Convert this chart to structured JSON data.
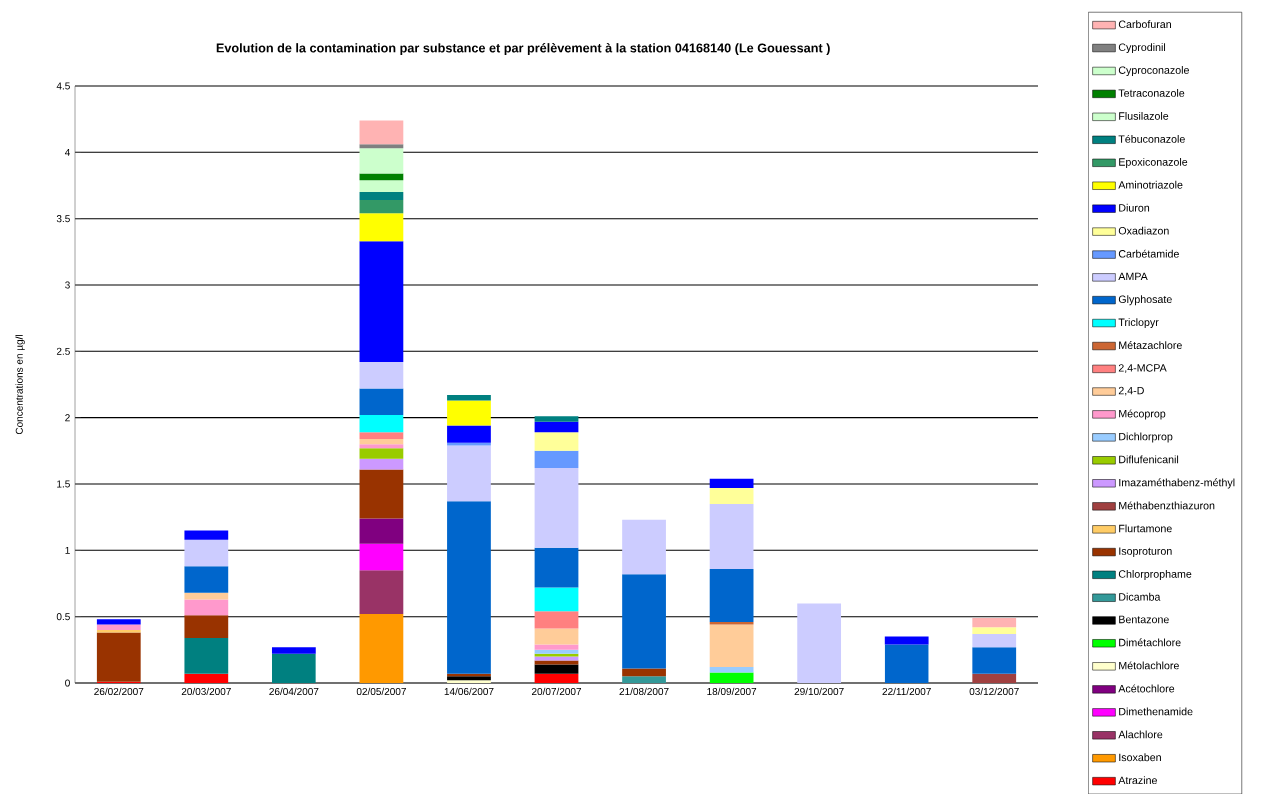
{
  "chart_data": {
    "type": "bar",
    "stacked": true,
    "title": "Evolution de la contamination par substance et par prélèvement à la station 04168140 (Le Gouessant )",
    "ylabel": "Concentrations en µg/l",
    "categories": [
      "26/02/2007",
      "20/03/2007",
      "26/04/2007",
      "02/05/2007",
      "14/06/2007",
      "20/07/2007",
      "21/08/2007",
      "18/09/2007",
      "29/10/2007",
      "22/11/2007",
      "03/12/2007"
    ],
    "ylim": [
      0,
      4.5
    ],
    "yticks": [
      0,
      0.5,
      1,
      1.5,
      2,
      2.5,
      3,
      3.5,
      4,
      4.5
    ],
    "grid": "y",
    "legend": "right",
    "series": [
      {
        "name": "Atrazine",
        "color": "#ff0000",
        "values": [
          0.01,
          0.07,
          null,
          null,
          null,
          0.07,
          null,
          null,
          null,
          null,
          null
        ]
      },
      {
        "name": "Isoxaben",
        "color": "#ff9900",
        "values": [
          null,
          null,
          null,
          0.52,
          null,
          null,
          null,
          null,
          null,
          null,
          null
        ]
      },
      {
        "name": "Alachlore",
        "color": "#993366",
        "values": [
          null,
          null,
          null,
          0.33,
          null,
          null,
          null,
          null,
          null,
          null,
          null
        ]
      },
      {
        "name": "Dimethenamide",
        "color": "#ff00ff",
        "values": [
          null,
          null,
          null,
          0.2,
          null,
          null,
          null,
          null,
          null,
          null,
          null
        ]
      },
      {
        "name": "Acétochlore",
        "color": "#800080",
        "values": [
          null,
          null,
          null,
          0.19,
          null,
          null,
          null,
          null,
          null,
          null,
          null
        ]
      },
      {
        "name": "Métolachlore",
        "color": "#ffffcc",
        "values": [
          null,
          null,
          null,
          null,
          0.02,
          null,
          null,
          null,
          null,
          null,
          null
        ]
      },
      {
        "name": "Dimétachlore",
        "color": "#00ff00",
        "values": [
          null,
          null,
          null,
          null,
          null,
          null,
          null,
          0.08,
          null,
          null,
          null
        ]
      },
      {
        "name": "Bentazone",
        "color": "#000000",
        "values": [
          null,
          null,
          null,
          null,
          0.03,
          0.07,
          null,
          null,
          null,
          null,
          null
        ]
      },
      {
        "name": "Dicamba",
        "color": "#339999",
        "values": [
          null,
          null,
          null,
          null,
          null,
          null,
          0.05,
          null,
          null,
          null,
          null
        ]
      },
      {
        "name": "Chlorprophame",
        "color": "#008080",
        "values": [
          null,
          0.27,
          0.22,
          null,
          null,
          null,
          null,
          null,
          null,
          null,
          null
        ]
      },
      {
        "name": "Isoproturon",
        "color": "#993300",
        "values": [
          0.37,
          0.17,
          null,
          0.37,
          0.02,
          0.03,
          0.06,
          null,
          null,
          null,
          null
        ]
      },
      {
        "name": "Flurtamone",
        "color": "#ffcc66",
        "values": [
          0.02,
          null,
          null,
          null,
          null,
          null,
          null,
          null,
          null,
          null,
          null
        ]
      },
      {
        "name": "Méthabenzthiazuron",
        "color": "#a04040",
        "values": [
          null,
          null,
          null,
          null,
          null,
          null,
          null,
          null,
          null,
          null,
          0.07
        ]
      },
      {
        "name": "Imazaméthabenz-méthyl",
        "color": "#cc99ff",
        "values": [
          null,
          null,
          null,
          0.08,
          null,
          0.03,
          null,
          null,
          null,
          null,
          null
        ]
      },
      {
        "name": "Diflufenicanil",
        "color": "#99cc00",
        "values": [
          null,
          null,
          null,
          0.08,
          null,
          0.02,
          null,
          null,
          null,
          null,
          null
        ]
      },
      {
        "name": "Dichlorprop",
        "color": "#99ccff",
        "values": [
          null,
          null,
          null,
          null,
          null,
          0.03,
          null,
          0.04,
          null,
          null,
          null
        ]
      },
      {
        "name": "Mécoprop",
        "color": "#ff99cc",
        "values": [
          0.04,
          0.12,
          null,
          0.03,
          null,
          0.04,
          null,
          null,
          null,
          null,
          null
        ]
      },
      {
        "name": "2,4-D",
        "color": "#ffcc99",
        "values": [
          null,
          0.05,
          null,
          0.04,
          null,
          0.12,
          null,
          0.32,
          null,
          null,
          null
        ]
      },
      {
        "name": "2,4-MCPA",
        "color": "#ff8080",
        "values": [
          null,
          null,
          null,
          0.05,
          null,
          0.13,
          null,
          null,
          null,
          null,
          null
        ]
      },
      {
        "name": "Métazachlore",
        "color": "#cc6633",
        "values": [
          null,
          null,
          null,
          null,
          null,
          null,
          null,
          0.02,
          null,
          null,
          null
        ]
      },
      {
        "name": "Triclopyr",
        "color": "#00ffff",
        "values": [
          null,
          null,
          null,
          0.13,
          null,
          0.18,
          null,
          null,
          null,
          null,
          null
        ]
      },
      {
        "name": "Glyphosate",
        "color": "#0066cc",
        "values": [
          null,
          0.2,
          null,
          0.2,
          1.3,
          0.3,
          0.71,
          0.4,
          null,
          0.29,
          0.2
        ]
      },
      {
        "name": "AMPA",
        "color": "#ccccff",
        "values": [
          null,
          0.2,
          null,
          0.2,
          0.42,
          0.6,
          0.41,
          0.49,
          0.6,
          null,
          0.1
        ]
      },
      {
        "name": "Carbétamide",
        "color": "#6699ff",
        "values": [
          null,
          null,
          null,
          null,
          0.02,
          0.13,
          null,
          null,
          null,
          null,
          null
        ]
      },
      {
        "name": "Oxadiazon",
        "color": "#ffff99",
        "values": [
          null,
          null,
          null,
          null,
          null,
          0.14,
          null,
          0.12,
          null,
          null,
          0.05
        ]
      },
      {
        "name": "Diuron",
        "color": "#0000ff",
        "values": [
          0.04,
          0.07,
          0.05,
          0.91,
          0.13,
          0.08,
          null,
          0.07,
          null,
          0.06,
          null
        ]
      },
      {
        "name": "Aminotriazole",
        "color": "#ffff00",
        "values": [
          null,
          null,
          null,
          0.21,
          0.19,
          null,
          null,
          null,
          null,
          null,
          null
        ]
      },
      {
        "name": "Epoxiconazole",
        "color": "#339966",
        "values": [
          null,
          null,
          null,
          0.1,
          null,
          null,
          null,
          null,
          null,
          null,
          null
        ]
      },
      {
        "name": "Tébuconazole",
        "color": "#008080",
        "values": [
          null,
          null,
          null,
          0.06,
          0.04,
          0.04,
          null,
          null,
          null,
          null,
          null
        ]
      },
      {
        "name": "Flusilazole",
        "color": "#ccffcc",
        "values": [
          null,
          null,
          null,
          0.09,
          null,
          null,
          null,
          null,
          null,
          null,
          null
        ]
      },
      {
        "name": "Tetraconazole",
        "color": "#008000",
        "values": [
          null,
          null,
          null,
          0.05,
          null,
          null,
          null,
          null,
          null,
          null,
          null
        ]
      },
      {
        "name": "Cyproconazole",
        "color": "#ccffcc",
        "values": [
          null,
          null,
          null,
          0.19,
          null,
          null,
          null,
          null,
          null,
          null,
          null
        ]
      },
      {
        "name": "Cyprodinil",
        "color": "#808080",
        "values": [
          null,
          null,
          null,
          0.03,
          null,
          null,
          null,
          null,
          null,
          null,
          null
        ]
      },
      {
        "name": "Carbofuran",
        "color": "#ffb3b3",
        "values": [
          null,
          null,
          null,
          0.18,
          null,
          null,
          null,
          null,
          null,
          null,
          0.07
        ]
      }
    ]
  }
}
